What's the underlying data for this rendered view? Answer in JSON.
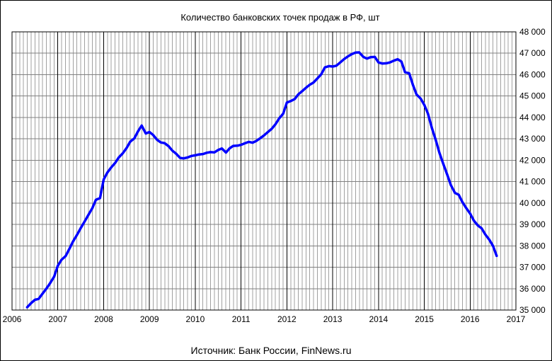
{
  "chart_data": {
    "type": "line",
    "title": "Количество банковских точек продаж в РФ, шт",
    "source": "Источник: Банк России, FinNews.ru",
    "xlabel": "",
    "ylabel": "",
    "xlim": [
      2006,
      2017
    ],
    "ylim": [
      35000,
      48000
    ],
    "x_ticks": [
      "2006",
      "2007",
      "2008",
      "2009",
      "2010",
      "2011",
      "2012",
      "2013",
      "2014",
      "2015",
      "2016",
      "2017"
    ],
    "y_ticks": [
      "35 000",
      "36 000",
      "37 000",
      "38 000",
      "39 000",
      "40 000",
      "41 000",
      "42 000",
      "43 000",
      "44 000",
      "45 000",
      "46 000",
      "47 000",
      "48 000"
    ],
    "grid": true,
    "series_color": "#0000ff",
    "series": [
      {
        "x": [
          2006.33,
          2006.42,
          2006.5,
          2006.58,
          2006.67,
          2006.75,
          2006.83,
          2006.92,
          2007.0,
          2007.08,
          2007.17,
          2007.25,
          2007.33,
          2007.42,
          2007.5,
          2007.58,
          2007.67,
          2007.75,
          2007.83,
          2007.92,
          2008.0,
          2008.08,
          2008.17,
          2008.25,
          2008.33,
          2008.42,
          2008.5,
          2008.58,
          2008.67,
          2008.75,
          2008.83,
          2008.92,
          2009.0,
          2009.08,
          2009.17,
          2009.25,
          2009.33,
          2009.42,
          2009.5,
          2009.58,
          2009.67,
          2009.75,
          2009.83,
          2009.92,
          2010.0,
          2010.08,
          2010.17,
          2010.25,
          2010.33,
          2010.42,
          2010.5,
          2010.58,
          2010.67,
          2010.75,
          2010.83,
          2010.92,
          2011.0,
          2011.08,
          2011.17,
          2011.25,
          2011.33,
          2011.42,
          2011.5,
          2011.58,
          2011.67,
          2011.75,
          2011.83,
          2011.92,
          2012.0,
          2012.08,
          2012.17,
          2012.25,
          2012.33,
          2012.42,
          2012.5,
          2012.58,
          2012.67,
          2012.75,
          2012.83,
          2012.92,
          2013.0,
          2013.08,
          2013.17,
          2013.25,
          2013.33,
          2013.42,
          2013.5,
          2013.58,
          2013.67,
          2013.75,
          2013.83,
          2013.92,
          2014.0,
          2014.08,
          2014.17,
          2014.25,
          2014.33,
          2014.42,
          2014.5,
          2014.58,
          2014.67,
          2014.75,
          2014.83,
          2014.92,
          2015.0,
          2015.08,
          2015.17,
          2015.25,
          2015.33,
          2015.42,
          2015.5,
          2015.58,
          2015.67,
          2015.75,
          2015.83,
          2015.92,
          2016.0,
          2016.08,
          2016.17,
          2016.25,
          2016.33,
          2016.42,
          2016.5,
          2016.58
        ],
        "values": [
          35130,
          35330,
          35480,
          35520,
          35780,
          36000,
          36250,
          36560,
          37070,
          37350,
          37520,
          37850,
          38200,
          38520,
          38830,
          39120,
          39460,
          39750,
          40150,
          40230,
          41100,
          41420,
          41680,
          41870,
          42130,
          42330,
          42570,
          42870,
          43020,
          43350,
          43620,
          43250,
          43320,
          43180,
          42950,
          42830,
          42800,
          42650,
          42450,
          42310,
          42110,
          42090,
          42130,
          42200,
          42230,
          42270,
          42290,
          42350,
          42380,
          42370,
          42480,
          42550,
          42360,
          42560,
          42670,
          42680,
          42720,
          42790,
          42860,
          42820,
          42900,
          43030,
          43160,
          43310,
          43470,
          43680,
          43950,
          44180,
          44700,
          44760,
          44860,
          45080,
          45220,
          45390,
          45530,
          45630,
          45830,
          46020,
          46340,
          46400,
          46380,
          46420,
          46580,
          46730,
          46850,
          46960,
          47030,
          47040,
          46830,
          46750,
          46820,
          46830,
          46570,
          46520,
          46530,
          46570,
          46650,
          46720,
          46610,
          46110,
          46060,
          45530,
          45080,
          44880,
          44590,
          44180,
          43480,
          42950,
          42350,
          41800,
          41330,
          40840,
          40470,
          40390,
          40050,
          39750,
          39510,
          39180,
          38950,
          38820,
          38540,
          38280,
          38000,
          37530
        ]
      }
    ]
  }
}
